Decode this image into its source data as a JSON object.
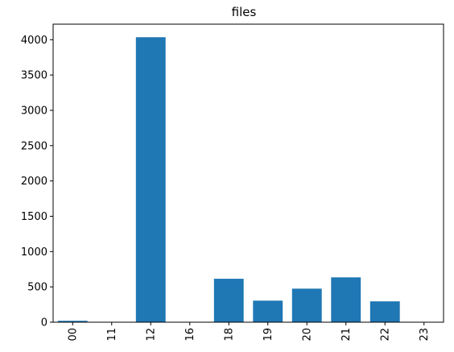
{
  "chart_data": {
    "type": "bar",
    "title": "files",
    "xlabel": "",
    "ylabel": "",
    "categories": [
      "00",
      "11",
      "12",
      "16",
      "18",
      "19",
      "20",
      "21",
      "22",
      "23"
    ],
    "values": [
      20,
      5,
      4035,
      5,
      615,
      305,
      475,
      635,
      295,
      5
    ],
    "ylim": [
      0,
      4220
    ],
    "yticks": [
      0,
      500,
      1000,
      1500,
      2000,
      2500,
      3000,
      3500,
      4000
    ],
    "grid": false,
    "legend": "none",
    "x_tick_rotation": "vertical",
    "bar_color": "#1f77b4"
  }
}
